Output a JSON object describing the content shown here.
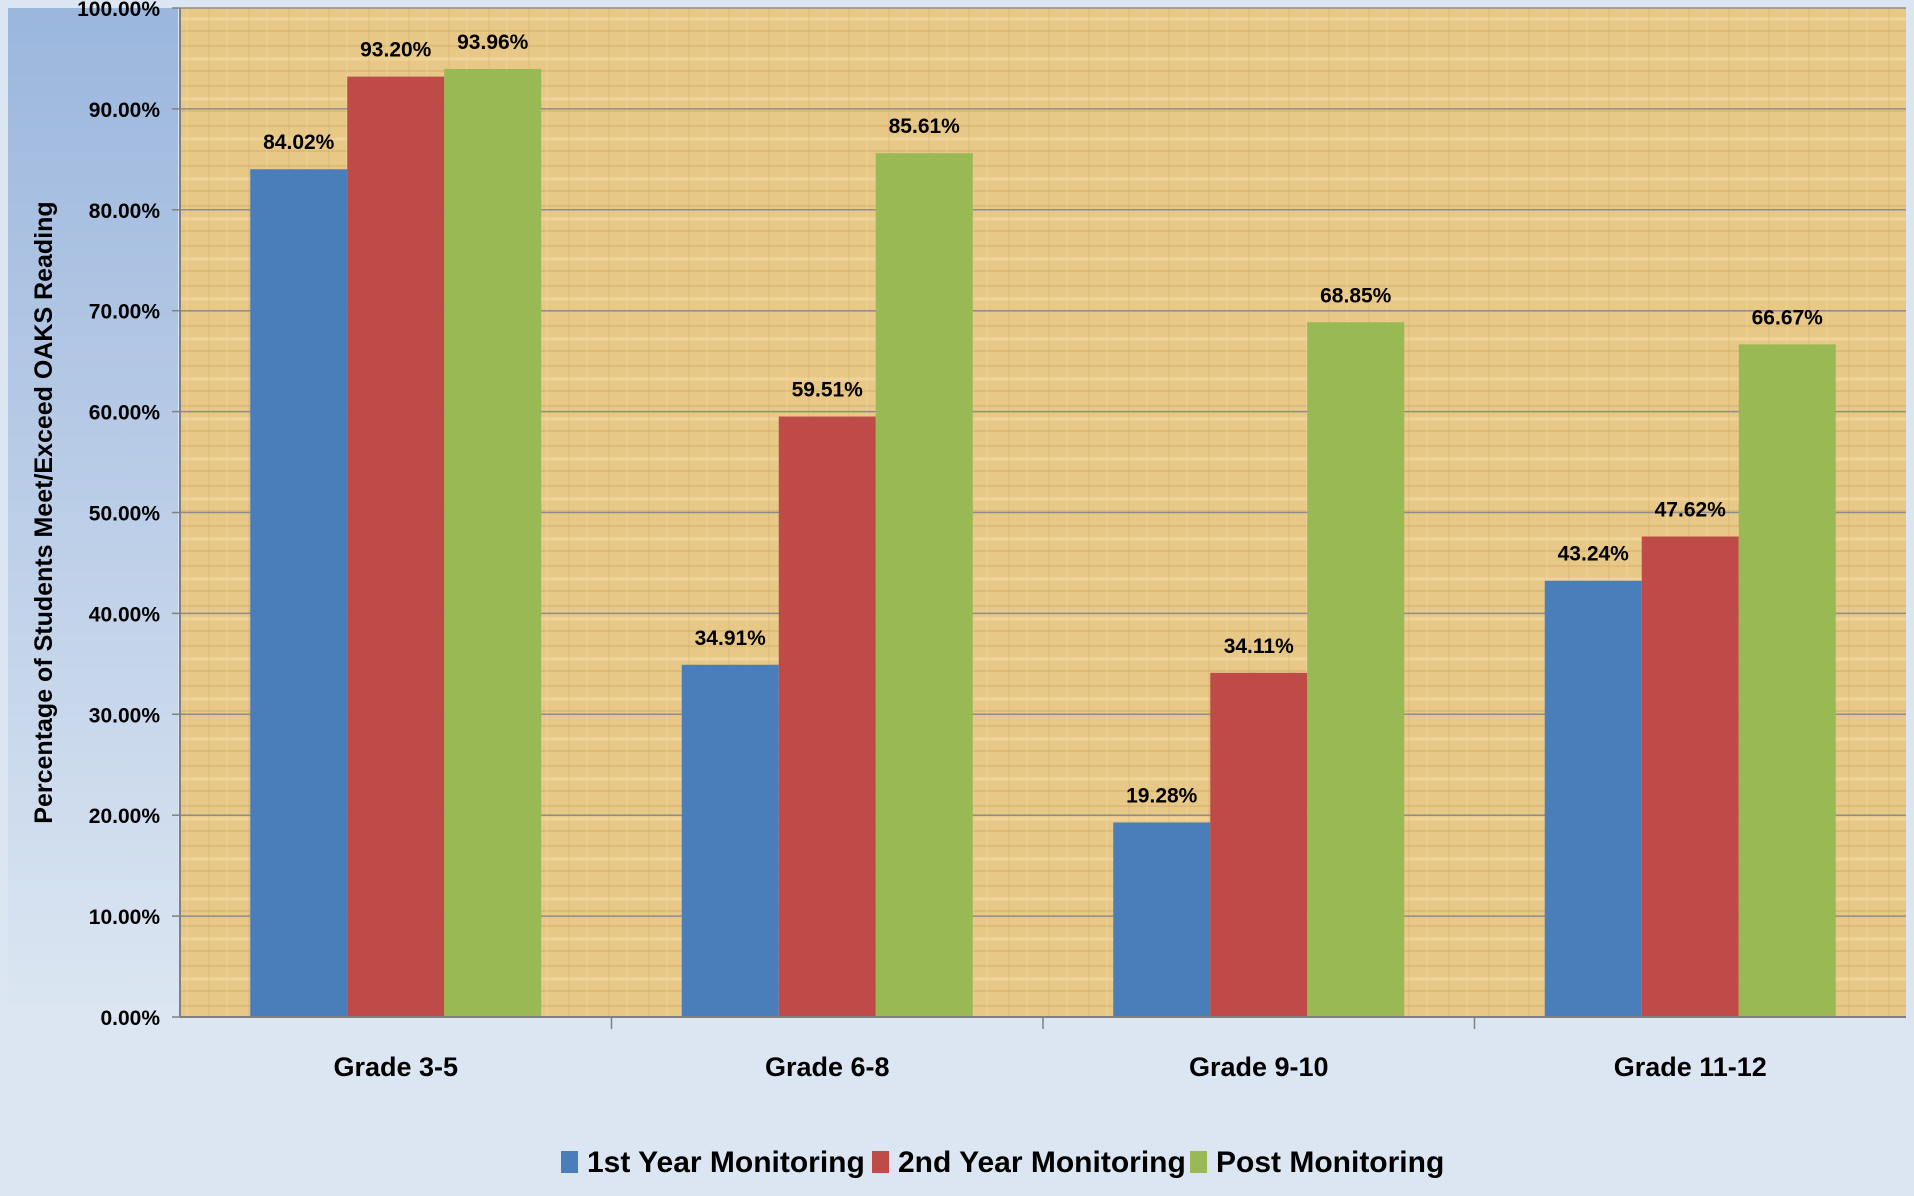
{
  "chart_data": {
    "type": "bar",
    "title": "",
    "xlabel": "",
    "ylabel": "Percentage of Students  Meet/Exceed OAKS Reading",
    "ylim": [
      0,
      100
    ],
    "yticks": [
      "0.00%",
      "10.00%",
      "20.00%",
      "30.00%",
      "40.00%",
      "50.00%",
      "60.00%",
      "70.00%",
      "80.00%",
      "90.00%",
      "100.00%"
    ],
    "categories": [
      "Grade 3-5",
      "Grade 6-8",
      "Grade 9-10",
      "Grade 11-12"
    ],
    "series": [
      {
        "name": "1st Year Monitoring",
        "color": "#4a7ebb",
        "values": [
          84.02,
          34.91,
          19.28,
          43.24
        ],
        "labels": [
          "84.02%",
          "34.91%",
          "19.28%",
          "43.24%"
        ]
      },
      {
        "name": "2nd Year Monitoring",
        "color": "#be4b48",
        "values": [
          93.2,
          59.51,
          34.11,
          47.62
        ],
        "labels": [
          "93.20%",
          "59.51%",
          "34.11%",
          "47.62%"
        ]
      },
      {
        "name": "Post Monitoring",
        "color": "#98b954",
        "values": [
          93.96,
          85.61,
          68.85,
          66.67
        ],
        "labels": [
          "93.96%",
          "85.61%",
          "68.85%",
          "66.67%"
        ]
      }
    ],
    "grid": true,
    "legend": "bottom",
    "colors": {
      "page_background": "#dce6f2",
      "plot_background": "#e8c887",
      "gridline": "#8d8d8d"
    }
  }
}
